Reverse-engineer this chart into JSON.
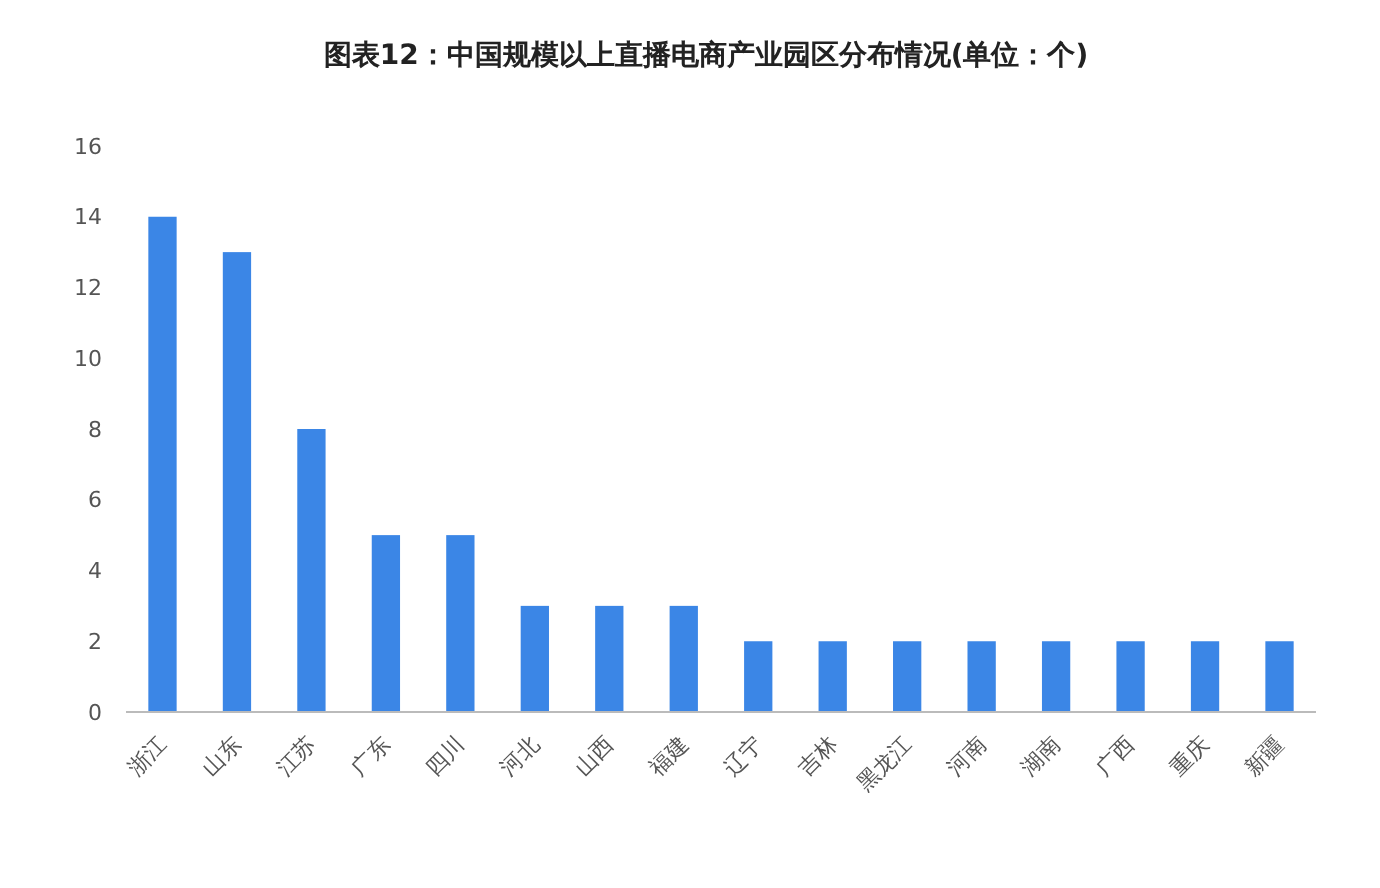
{
  "chart_data": {
    "type": "bar",
    "title": "图表12：中国规模以上直播电商产业园区分布情况(单位：个)",
    "categories": [
      "浙江",
      "山东",
      "江苏",
      "广东",
      "四川",
      "河北",
      "山西",
      "福建",
      "辽宁",
      "吉林",
      "黑龙江",
      "河南",
      "湖南",
      "广西",
      "重庆",
      "新疆"
    ],
    "values": [
      14,
      13,
      8,
      5,
      5,
      3,
      3,
      3,
      2,
      2,
      2,
      2,
      2,
      2,
      2,
      2
    ],
    "color": "#3b86e6",
    "ylim": [
      0,
      16
    ],
    "yticks": [
      0,
      2,
      4,
      6,
      8,
      10,
      12,
      14,
      16
    ],
    "grid": false
  }
}
